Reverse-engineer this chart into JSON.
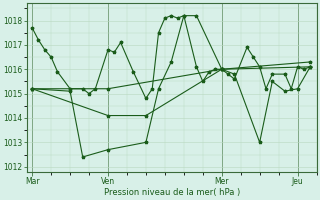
{
  "bg_color": "#cce8d8",
  "plot_bg_color": "#d8f0e8",
  "line_color": "#1a5c1a",
  "grid_color": "#b8d8c0",
  "xlabel": "Pression niveau de la mer( hPa )",
  "ylim": [
    1011.8,
    1018.7
  ],
  "yticks": [
    1012,
    1013,
    1014,
    1015,
    1016,
    1017,
    1018
  ],
  "xlim": [
    -5,
    270
  ],
  "day_positions": [
    0,
    72,
    180,
    252
  ],
  "day_labels": [
    "Mar",
    "Ven",
    "Mer",
    "Jeu"
  ],
  "series1_x": [
    0,
    6,
    12,
    18,
    24,
    36,
    48,
    54,
    60,
    72,
    78,
    84,
    96,
    108,
    114,
    120,
    126,
    132,
    138,
    144,
    156,
    162,
    168,
    174,
    180,
    186,
    192,
    204,
    210,
    216,
    222,
    228,
    240,
    246,
    252,
    258,
    264
  ],
  "series1_y": [
    1017.7,
    1017.2,
    1016.8,
    1016.5,
    1015.9,
    1015.2,
    1015.2,
    1015.0,
    1015.2,
    1016.8,
    1016.7,
    1017.1,
    1015.9,
    1014.8,
    1015.2,
    1017.5,
    1018.1,
    1018.2,
    1018.1,
    1018.2,
    1016.1,
    1015.5,
    1015.9,
    1016.0,
    1016.0,
    1015.8,
    1015.6,
    1016.9,
    1016.5,
    1016.1,
    1015.2,
    1015.8,
    1015.8,
    1015.2,
    1016.1,
    1016.0,
    1016.1
  ],
  "series2_x": [
    0,
    72,
    180,
    264
  ],
  "series2_y": [
    1015.2,
    1015.2,
    1016.0,
    1016.3
  ],
  "series3_x": [
    0,
    72,
    108,
    180,
    264
  ],
  "series3_y": [
    1015.2,
    1014.1,
    1014.1,
    1016.0,
    1016.1
  ],
  "series4_x": [
    0,
    36,
    48,
    72,
    108,
    120,
    132,
    144,
    156,
    180,
    192,
    216,
    228,
    240,
    252,
    264
  ],
  "series4_y": [
    1015.2,
    1015.1,
    1012.4,
    1012.7,
    1013.0,
    1015.2,
    1016.3,
    1018.2,
    1018.2,
    1016.0,
    1015.8,
    1013.0,
    1015.5,
    1015.1,
    1015.2,
    1016.1
  ]
}
